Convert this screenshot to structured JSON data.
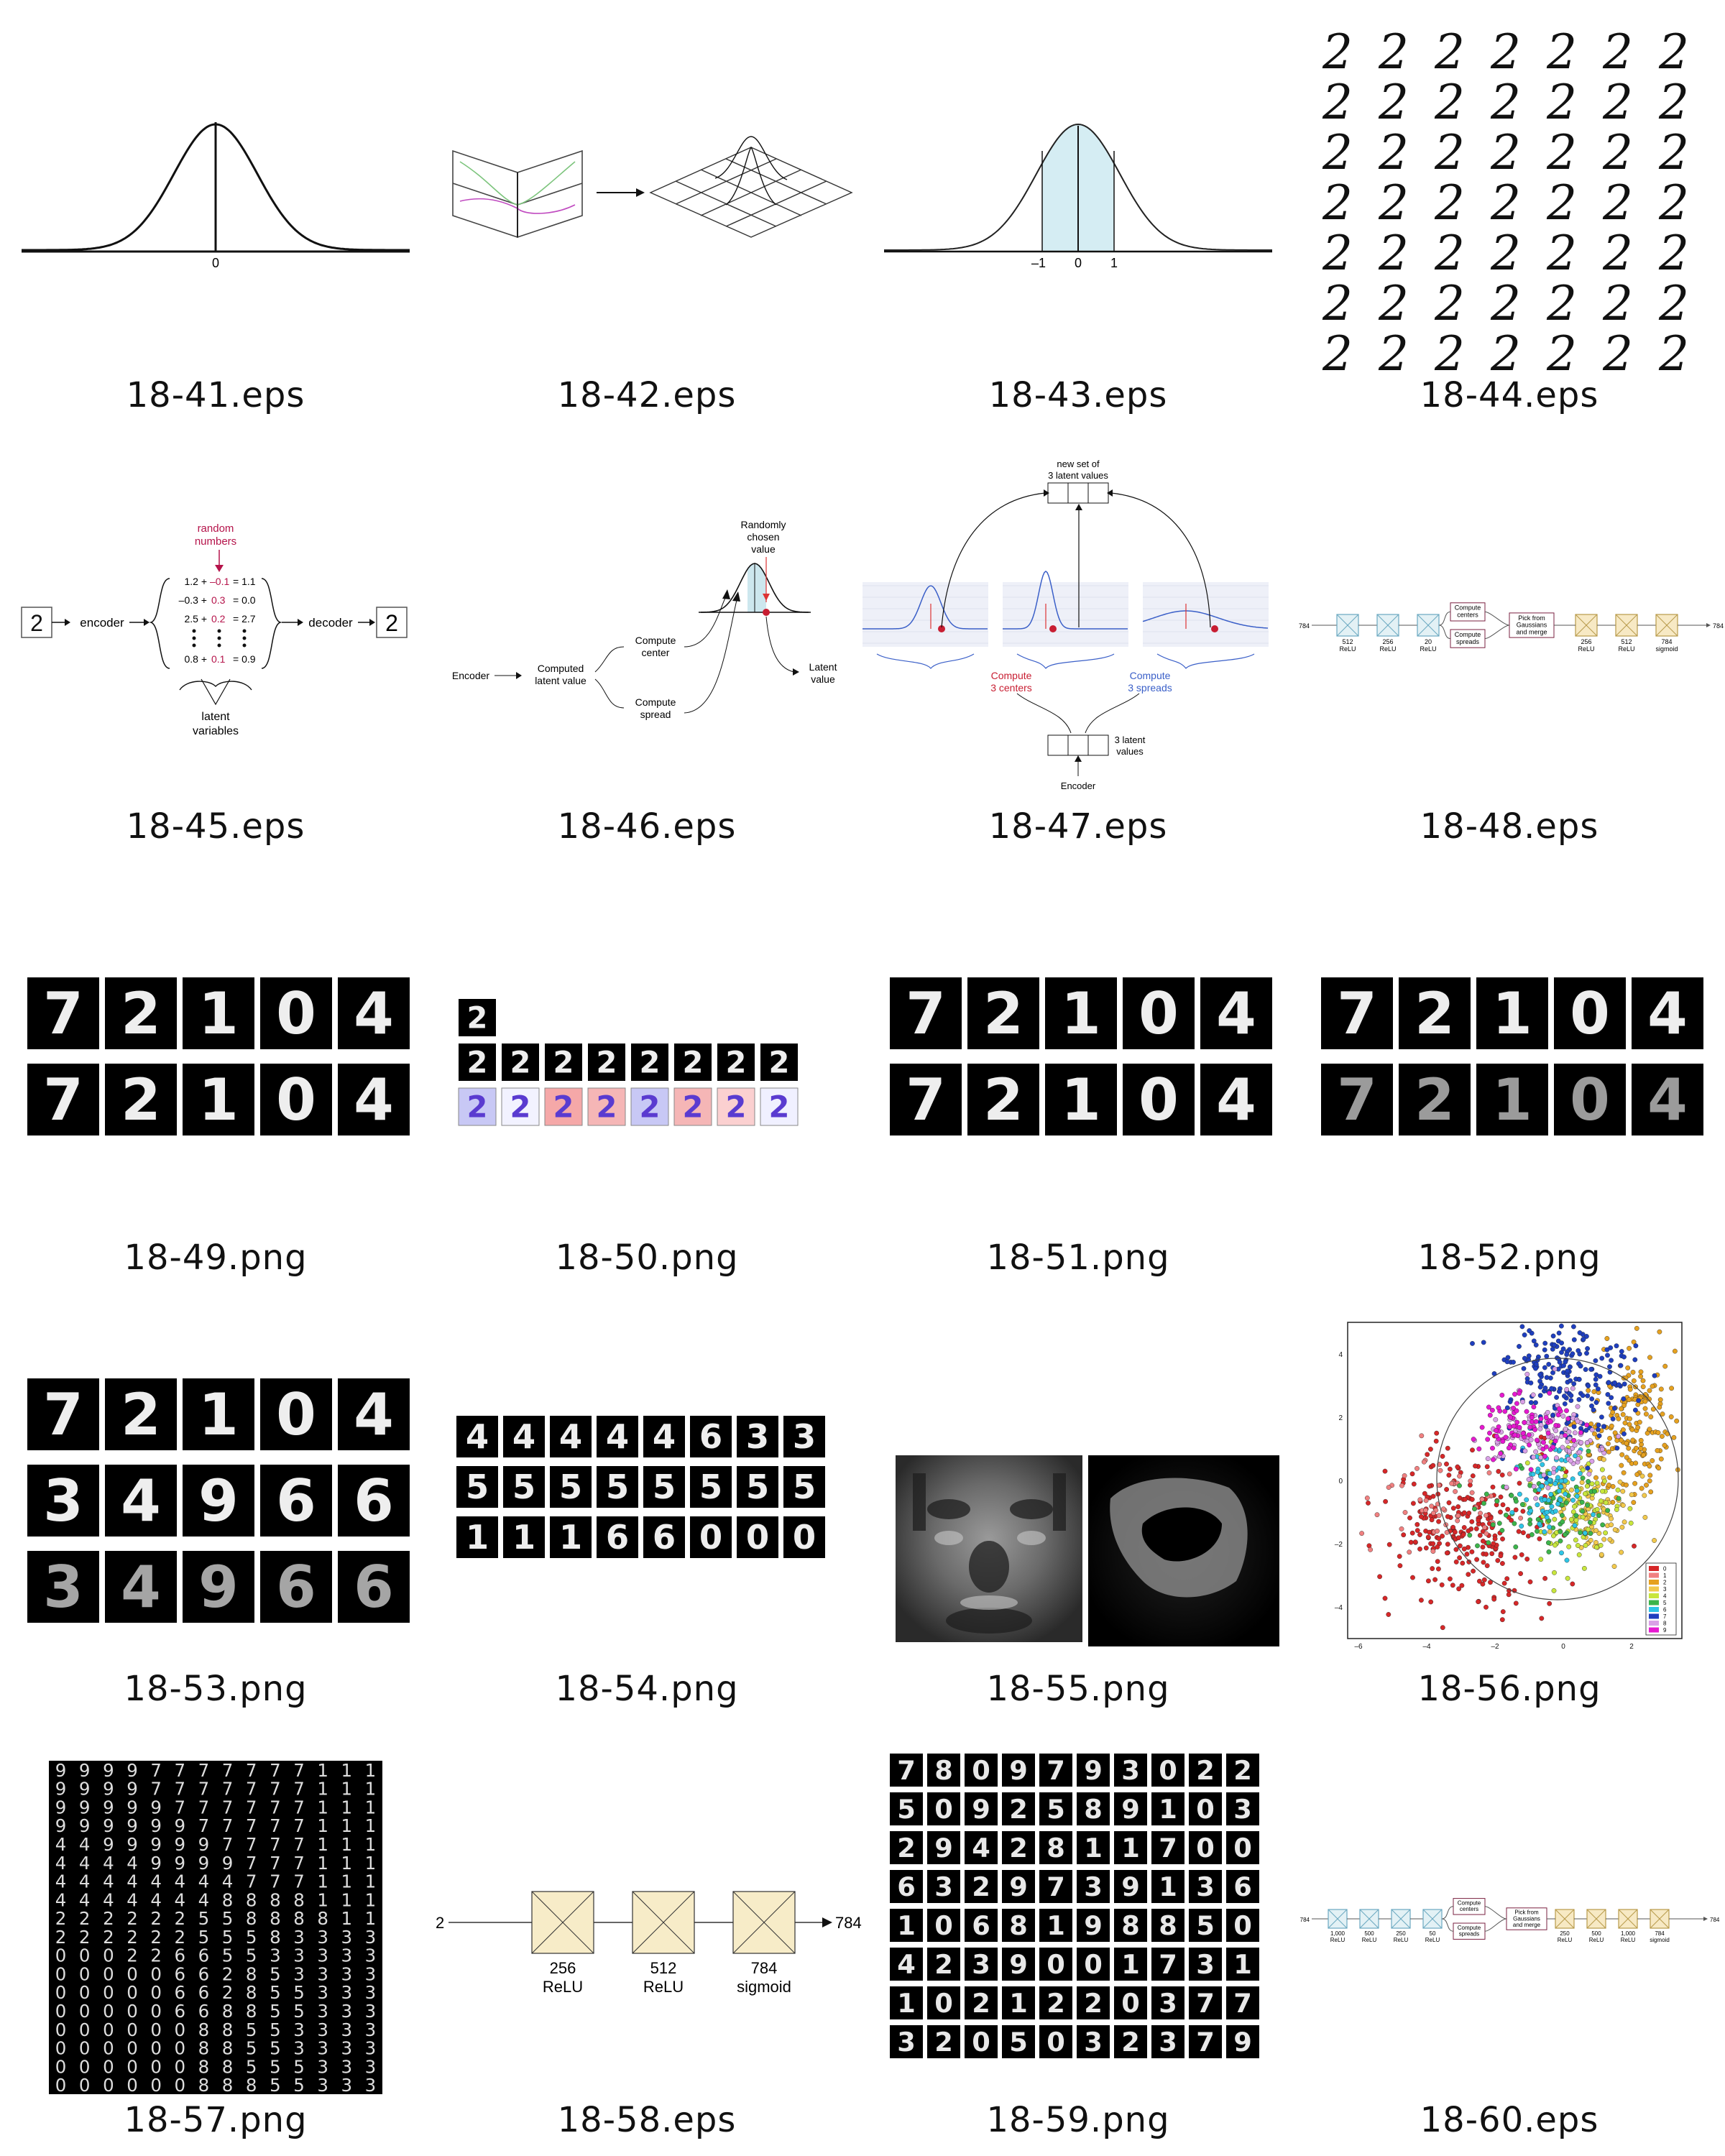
{
  "thumbnails": [
    {
      "caption": "18-41.eps"
    },
    {
      "caption": "18-42.eps"
    },
    {
      "caption": "18-43.eps"
    },
    {
      "caption": "18-44.eps"
    },
    {
      "caption": "18-45.eps"
    },
    {
      "caption": "18-46.eps"
    },
    {
      "caption": "18-47.eps"
    },
    {
      "caption": "18-48.eps"
    },
    {
      "caption": "18-49.png"
    },
    {
      "caption": "18-50.png"
    },
    {
      "caption": "18-51.png"
    },
    {
      "caption": "18-52.png"
    },
    {
      "caption": "18-53.png"
    },
    {
      "caption": "18-54.png"
    },
    {
      "caption": "18-55.png"
    },
    {
      "caption": "18-56.png"
    },
    {
      "caption": "18-57.png"
    },
    {
      "caption": "18-58.eps"
    },
    {
      "caption": "18-59.png"
    },
    {
      "caption": "18-60.eps"
    }
  ],
  "fig41": {
    "zero": "0"
  },
  "fig43": {
    "ticks": [
      "–1",
      "0",
      "1"
    ]
  },
  "fig45": {
    "top_label_1": "random",
    "top_label_2": "numbers",
    "encoder": "encoder",
    "decoder": "decoder",
    "digit": "2",
    "rows": [
      {
        "a": "1.2 +",
        "b": "–0.1",
        "c": "= 1.1"
      },
      {
        "a": "–0.3 +",
        "b": "0.3",
        "c": "= 0.0"
      },
      {
        "a": "2.5 +",
        "b": "0.2",
        "c": "= 2.7"
      },
      {
        "a": "0.8 +",
        "b": "0.1",
        "c": "= 0.9"
      }
    ],
    "bottom_label_1": "latent",
    "bottom_label_2": "variables"
  },
  "fig46": {
    "encoder": "Encoder",
    "computed_1": "Computed",
    "computed_2": "latent value",
    "center_1": "Compute",
    "center_2": "center",
    "spread_1": "Compute",
    "spread_2": "spread",
    "random_1": "Randomly",
    "random_2": "chosen",
    "random_3": "value",
    "latent_1": "Latent",
    "latent_2": "value"
  },
  "fig47": {
    "top_1": "new set of",
    "top_2": "3 latent values",
    "centers_1": "Compute",
    "centers_2": "3 centers",
    "spreads_1": "Compute",
    "spreads_2": "3 spreads",
    "latent_1": "3 latent",
    "latent_2": "values",
    "encoder": "Encoder"
  },
  "fig48": {
    "in": "784",
    "out": "784",
    "layers": [
      {
        "n": "512",
        "act": "ReLU"
      },
      {
        "n": "256",
        "act": "ReLU"
      },
      {
        "n": "20",
        "act": "ReLU"
      },
      {
        "n": "256",
        "act": "ReLU"
      },
      {
        "n": "512",
        "act": "ReLU"
      },
      {
        "n": "784",
        "act": "sigmoid"
      }
    ],
    "centers_1": "Compute",
    "centers_2": "centers",
    "spreads_1": "Compute",
    "spreads_2": "spreads",
    "pick_1": "Pick from",
    "pick_2": "Gaussians",
    "pick_3": "and merge"
  },
  "digits": {
    "row_a": [
      "7",
      "2",
      "1",
      "0",
      "4"
    ],
    "row_b": [
      "3",
      "4",
      "9",
      "6",
      "6"
    ],
    "fig54": [
      [
        "4",
        "4",
        "4",
        "4",
        "4",
        "6",
        "3",
        "3"
      ],
      [
        "5",
        "5",
        "5",
        "5",
        "5",
        "5",
        "5",
        "5"
      ],
      [
        "1",
        "1",
        "1",
        "6",
        "6",
        "0",
        "0",
        "0"
      ]
    ],
    "fig59": [
      [
        "7",
        "8",
        "0",
        "9",
        "7",
        "9",
        "3",
        "0",
        "2",
        "2"
      ],
      [
        "5",
        "0",
        "9",
        "2",
        "5",
        "8",
        "9",
        "1",
        "0",
        "3"
      ],
      [
        "2",
        "9",
        "4",
        "2",
        "8",
        "1",
        "1",
        "7",
        "0",
        "0"
      ],
      [
        "6",
        "3",
        "2",
        "9",
        "7",
        "3",
        "9",
        "1",
        "3",
        "6"
      ],
      [
        "1",
        "0",
        "6",
        "8",
        "1",
        "9",
        "8",
        "8",
        "5",
        "0"
      ],
      [
        "4",
        "2",
        "3",
        "9",
        "0",
        "0",
        "1",
        "7",
        "3",
        "1"
      ],
      [
        "1",
        "0",
        "2",
        "1",
        "2",
        "2",
        "0",
        "3",
        "7",
        "7"
      ],
      [
        "3",
        "2",
        "0",
        "5",
        "0",
        "3",
        "2",
        "3",
        "7",
        "9"
      ]
    ],
    "fig50": "2"
  },
  "fig56": {
    "yticks": [
      "4",
      "2",
      "0",
      "–2",
      "–4"
    ],
    "xticks": [
      "–6",
      "–4",
      "–2",
      "0",
      "2"
    ],
    "legend": [
      "0",
      "1",
      "2",
      "3",
      "4",
      "5",
      "6",
      "7",
      "8",
      "9"
    ],
    "colors": [
      "#d62728",
      "#f08080",
      "#e6a11f",
      "#f2c94c",
      "#c8e63c",
      "#3cb44b",
      "#2ec5e6",
      "#1f3fbf",
      "#d9a0e6",
      "#e619d0"
    ]
  },
  "fig58": {
    "in": "2",
    "out": "784",
    "layers": [
      {
        "n": "256",
        "act": "ReLU"
      },
      {
        "n": "512",
        "act": "ReLU"
      },
      {
        "n": "784",
        "act": "sigmoid"
      }
    ]
  },
  "fig60": {
    "in": "784",
    "out": "784",
    "layers": [
      {
        "n": "1,000",
        "act": "ReLU"
      },
      {
        "n": "500",
        "act": "ReLU"
      },
      {
        "n": "250",
        "act": "ReLU"
      },
      {
        "n": "50",
        "act": "ReLU"
      },
      {
        "n": "250",
        "act": "ReLU"
      },
      {
        "n": "500",
        "act": "ReLU"
      },
      {
        "n": "1,000",
        "act": "ReLU"
      },
      {
        "n": "784",
        "act": "sigmoid"
      }
    ],
    "centers_1": "Compute",
    "centers_2": "centers",
    "spreads_1": "Compute",
    "spreads_2": "spreads",
    "pick_1": "Pick from",
    "pick_2": "Gaussians",
    "pick_3": "and merge"
  }
}
